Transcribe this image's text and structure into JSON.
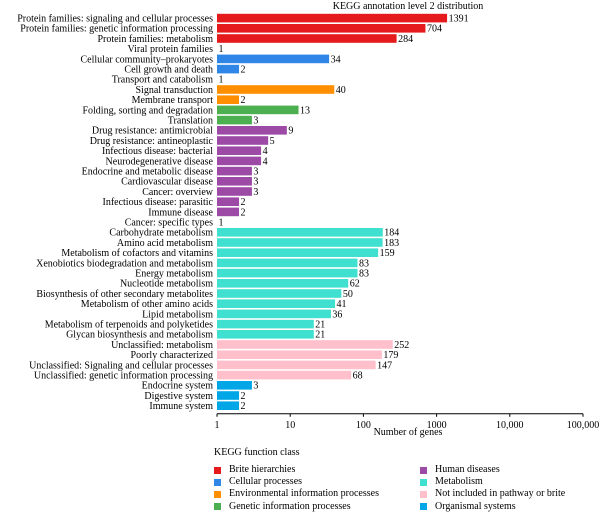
{
  "chart_data": {
    "type": "bar",
    "orientation": "horizontal",
    "title": "KEGG annotation level 2 distribution",
    "xlabel": "Number of genes",
    "xscale": "log",
    "xlim": [
      1,
      100000
    ],
    "xticks": [
      "1",
      "10",
      "100",
      "1000",
      "10,000",
      "100,000"
    ],
    "legend_title": "KEGG function class",
    "legend_placement": "bottom",
    "classes": [
      {
        "name": "Brite hierarchies",
        "color": "#e41a1c"
      },
      {
        "name": "Cellular processes",
        "color": "#2f86e6"
      },
      {
        "name": "Environmental information processes",
        "color": "#ff8f00"
      },
      {
        "name": "Genetic information processes",
        "color": "#4caf50"
      },
      {
        "name": "Human diseases",
        "color": "#9c4aa6"
      },
      {
        "name": "Metabolism",
        "color": "#40e0d0"
      },
      {
        "name": "Not included in pathway or brite",
        "color": "#ffc0cb"
      },
      {
        "name": "Organismal systems",
        "color": "#00a6e6"
      }
    ],
    "categories": [
      {
        "label": "Protein families: signaling and cellular processes",
        "value": 1391,
        "class": 0
      },
      {
        "label": "Protein families: genetic information processing",
        "value": 704,
        "class": 0
      },
      {
        "label": "Protein families: metabolism",
        "value": 284,
        "class": 0
      },
      {
        "label": "Viral protein families",
        "value": 1,
        "class": 0
      },
      {
        "label": "Cellular community–prokaryotes",
        "value": 34,
        "class": 1
      },
      {
        "label": "Cell growth and death",
        "value": 2,
        "class": 1
      },
      {
        "label": "Transport and catabolism",
        "value": 1,
        "class": 1
      },
      {
        "label": "Signal transduction",
        "value": 40,
        "class": 2
      },
      {
        "label": "Membrane transport",
        "value": 2,
        "class": 2
      },
      {
        "label": "Folding, sorting and degradation",
        "value": 13,
        "class": 3
      },
      {
        "label": "Translation",
        "value": 3,
        "class": 3
      },
      {
        "label": "Drug resistance: antimicrobial",
        "value": 9,
        "class": 4
      },
      {
        "label": "Drug resistance: antineoplastic",
        "value": 5,
        "class": 4
      },
      {
        "label": "Infectious disease: bacterial",
        "value": 4,
        "class": 4
      },
      {
        "label": "Neurodegenerative disease",
        "value": 4,
        "class": 4
      },
      {
        "label": "Endocrine and metabolic disease",
        "value": 3,
        "class": 4
      },
      {
        "label": "Cardiovascular disease",
        "value": 3,
        "class": 4
      },
      {
        "label": "Cancer: overview",
        "value": 3,
        "class": 4
      },
      {
        "label": "Infectious disease: parasitic",
        "value": 2,
        "class": 4
      },
      {
        "label": "Immune disease",
        "value": 2,
        "class": 4
      },
      {
        "label": "Cancer: specific types",
        "value": 1,
        "class": 4
      },
      {
        "label": "Carbohydrate metabolism",
        "value": 184,
        "class": 5
      },
      {
        "label": "Amino acid metabolism",
        "value": 183,
        "class": 5
      },
      {
        "label": "Metabolism of cofactors and vitamins",
        "value": 159,
        "class": 5
      },
      {
        "label": "Xenobiotics biodegradation and metabolism",
        "value": 83,
        "class": 5
      },
      {
        "label": "Energy metabolism",
        "value": 83,
        "class": 5
      },
      {
        "label": "Nucleotide metabolism",
        "value": 62,
        "class": 5
      },
      {
        "label": "Biosynthesis of other secondary metabolites",
        "value": 50,
        "class": 5
      },
      {
        "label": "Metabolism of other amino acids",
        "value": 41,
        "class": 5
      },
      {
        "label": "Lipid metabolism",
        "value": 36,
        "class": 5
      },
      {
        "label": "Metabolism of terpenoids and polyketides",
        "value": 21,
        "class": 5
      },
      {
        "label": "Glycan biosynthesis and metabolism",
        "value": 21,
        "class": 5
      },
      {
        "label": "Unclassified: metabolism",
        "value": 252,
        "class": 6
      },
      {
        "label": "Poorly characterized",
        "value": 179,
        "class": 6
      },
      {
        "label": "Unclassified: Signaling and cellular processes",
        "value": 147,
        "class": 6
      },
      {
        "label": "Unclassified: genetic information processing",
        "value": 68,
        "class": 6
      },
      {
        "label": "Endocrine system",
        "value": 3,
        "class": 7
      },
      {
        "label": "Digestive system",
        "value": 2,
        "class": 7
      },
      {
        "label": "Immune system",
        "value": 2,
        "class": 7
      }
    ]
  }
}
